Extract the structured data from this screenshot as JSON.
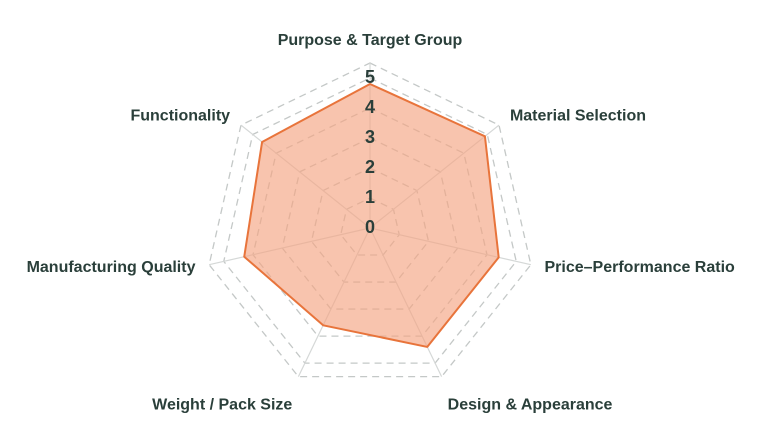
{
  "chart_data": {
    "type": "radar",
    "categories": [
      "Purpose & Target Group",
      "Material Selection",
      "Price–Performance Ratio",
      "Design & Appearance",
      "Weight / Pack Size",
      "Manufacturing Quality",
      "Functionality"
    ],
    "values": [
      4.8,
      4.9,
      4.4,
      4.4,
      3.6,
      4.3,
      4.6
    ],
    "rlim": [
      0,
      5.5
    ],
    "rticks": [
      0,
      1,
      2,
      3,
      4,
      5
    ],
    "color": "#e8743b",
    "fill": "#f4a582",
    "grid": true
  }
}
